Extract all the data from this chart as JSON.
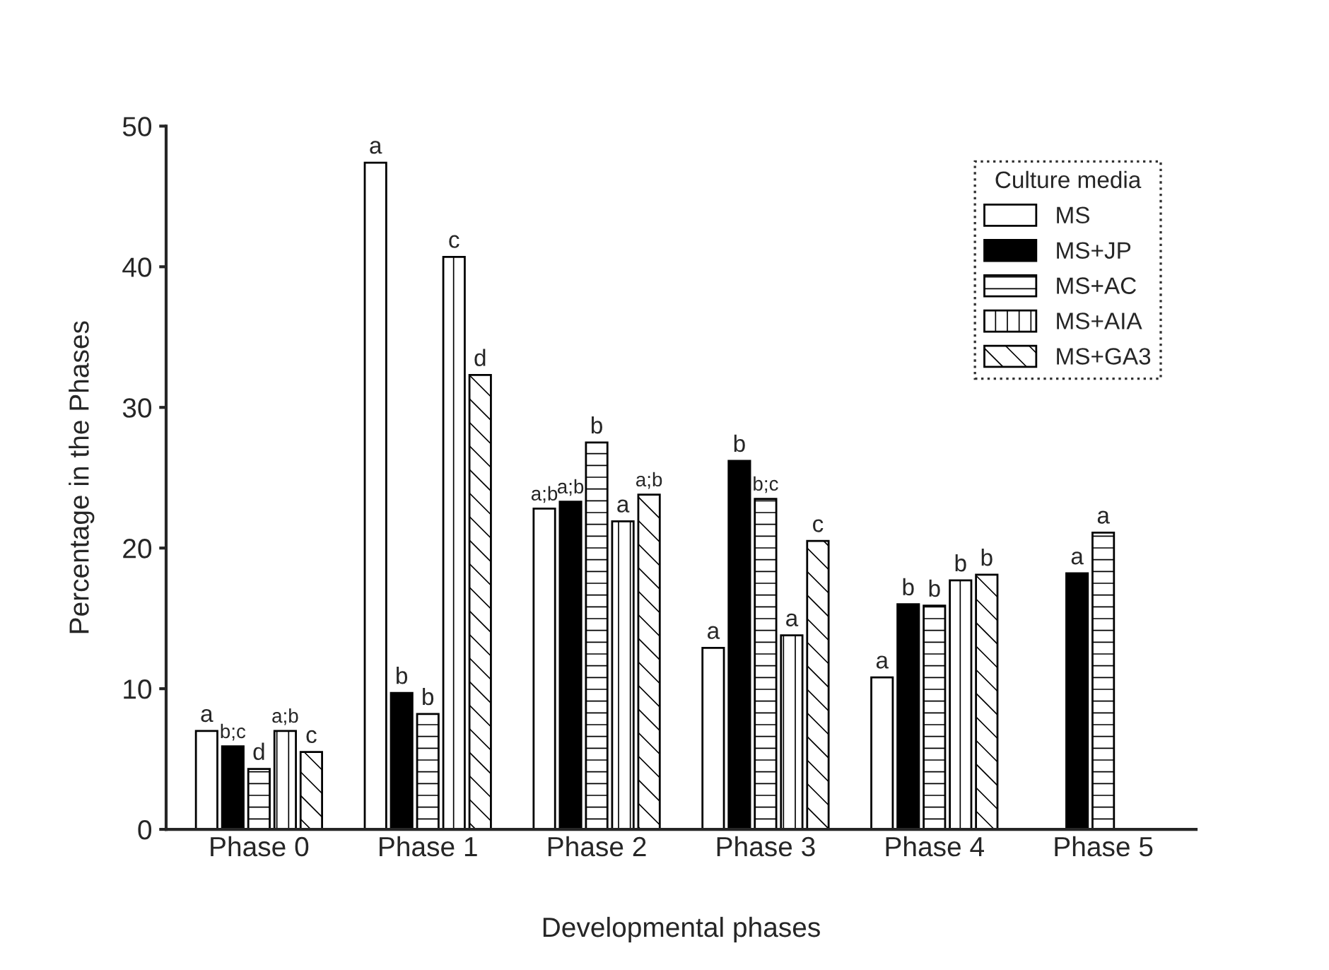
{
  "chart_data": {
    "type": "bar",
    "xlabel": "Developmental phases",
    "ylabel": "Percentage in the Phases",
    "legend_title": "Culture media",
    "categories": [
      "Phase 0",
      "Phase 1",
      "Phase 2",
      "Phase 3",
      "Phase 4",
      "Phase 5"
    ],
    "series": [
      {
        "name": "MS",
        "color": "#ffffff",
        "values": [
          7.0,
          47.4,
          22.8,
          12.9,
          10.8,
          null
        ],
        "value_labels": [
          "a",
          "a",
          "a;b",
          "a",
          "a",
          null
        ]
      },
      {
        "name": "MS+JP",
        "color": "#000000",
        "values": [
          5.9,
          9.7,
          23.3,
          26.2,
          16.0,
          18.2
        ],
        "value_labels": [
          "b;c",
          "b",
          "a;b",
          "b",
          "b",
          "a"
        ]
      },
      {
        "name": "MS+AC",
        "color": "#000000",
        "values": [
          4.3,
          8.2,
          27.5,
          23.5,
          15.9,
          21.1
        ],
        "value_labels": [
          "d",
          "b",
          "b",
          "b;c",
          "b",
          "a"
        ]
      },
      {
        "name": "MS+AIA",
        "color": "#000000",
        "values": [
          7.0,
          40.7,
          21.9,
          13.8,
          17.7,
          null
        ],
        "value_labels": [
          "a;b",
          "c",
          "a",
          "a",
          "b",
          null
        ]
      },
      {
        "name": "MS+GA3",
        "color": "#000000",
        "values": [
          5.5,
          32.3,
          23.8,
          20.5,
          18.1,
          null
        ],
        "value_labels": [
          "c",
          "d",
          "a;b",
          "c",
          "b",
          null
        ]
      }
    ],
    "ylim": [
      0,
      50
    ],
    "yticks": [
      0,
      10,
      20,
      30,
      40,
      50
    ],
    "grid": false,
    "legend": "top right"
  }
}
